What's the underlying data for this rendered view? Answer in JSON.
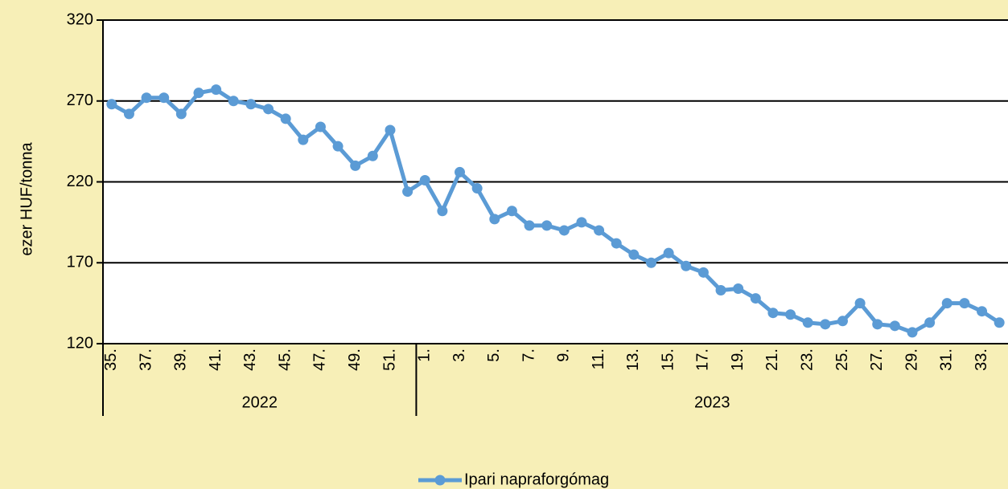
{
  "chart_data": {
    "type": "line",
    "categories": [
      "35.",
      null,
      "37.",
      null,
      "39.",
      null,
      "41.",
      null,
      "43.",
      null,
      "45.",
      null,
      "47.",
      null,
      "49.",
      null,
      "51.",
      null,
      "1.",
      null,
      "3.",
      null,
      "5.",
      null,
      "7.",
      null,
      "9.",
      null,
      "11.",
      null,
      "13.",
      null,
      "15.",
      null,
      "17.",
      null,
      "19.",
      null,
      "21.",
      null,
      "23.",
      null,
      "25.",
      null,
      "27.",
      null,
      "29.",
      null,
      "31.",
      null,
      "33.",
      null
    ],
    "x_groups": [
      {
        "label": "2022",
        "span": 18
      },
      {
        "label": "2023",
        "span": 34
      }
    ],
    "series": [
      {
        "name": "Ipari napraforgómag",
        "color": "#5b9bd5",
        "values": [
          268,
          262,
          272,
          272,
          262,
          275,
          277,
          270,
          268,
          265,
          259,
          246,
          254,
          242,
          230,
          236,
          252,
          214,
          221,
          202,
          226,
          216,
          197,
          202,
          193,
          193,
          190,
          195,
          190,
          182,
          175,
          170,
          176,
          168,
          164,
          153,
          154,
          148,
          139,
          138,
          133,
          132,
          134,
          145,
          132,
          131,
          127,
          133,
          145,
          145,
          140,
          133
        ]
      }
    ],
    "ylabel": "ezer HUF/tonna",
    "ylim": [
      120,
      320
    ],
    "yticks": [
      120,
      170,
      220,
      270,
      320
    ],
    "grid": true,
    "legend": "bottom"
  }
}
